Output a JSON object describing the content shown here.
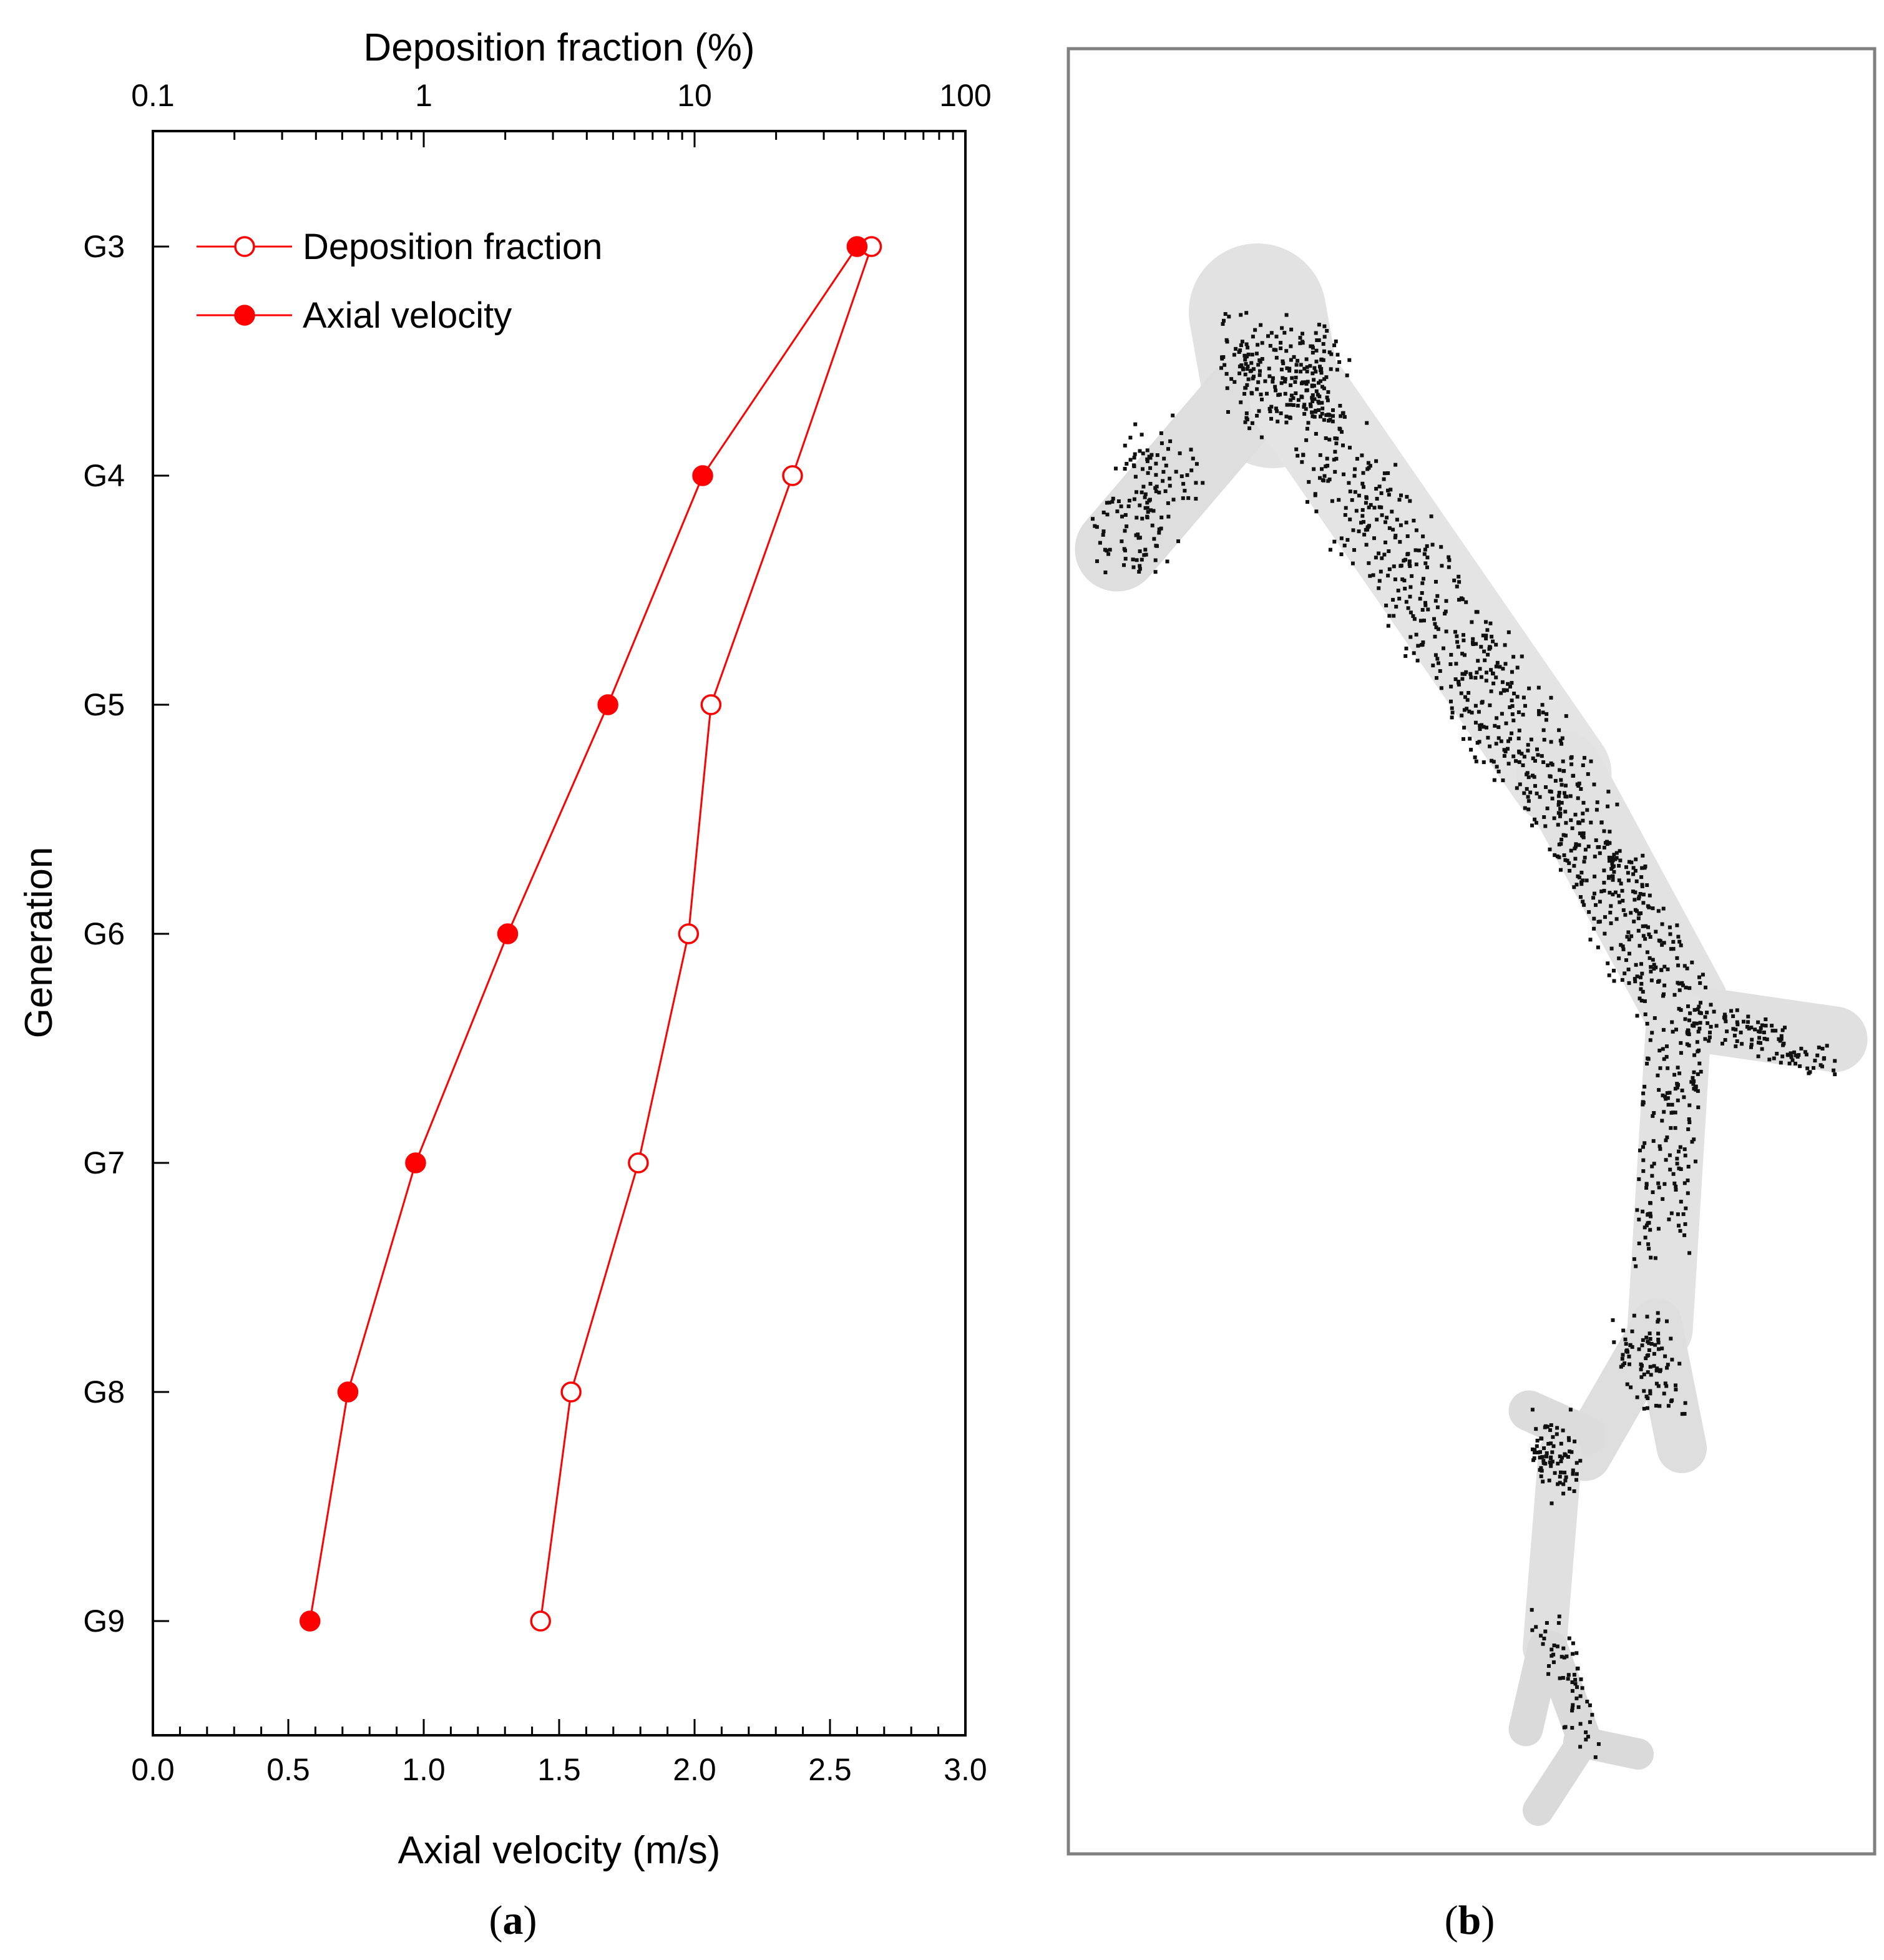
{
  "chart_data": {
    "type": "line",
    "categories": [
      "G3",
      "G4",
      "G5",
      "G6",
      "G7",
      "G8",
      "G9"
    ],
    "ylabel": "Generation",
    "xlabel_bottom": "Axial velocity (m/s)",
    "xlabel_top": "Deposition fraction (%)",
    "xlim_bottom": [
      0.0,
      3.0
    ],
    "xticks_bottom": [
      "0.0",
      "0.5",
      "1.0",
      "1.5",
      "2.0",
      "2.5",
      "3.0"
    ],
    "xscale_top": "log",
    "xlim_top": [
      0.1,
      100
    ],
    "xticks_top": [
      "0.1",
      "1",
      "10",
      "100"
    ],
    "grid": false,
    "legend_position": "top-left",
    "series": [
      {
        "name": "Deposition fraction",
        "axis": "top",
        "marker": "open-circle",
        "color": "#ff0000",
        "values": [
          45,
          23,
          11.5,
          9.5,
          6.2,
          3.5,
          2.7
        ]
      },
      {
        "name": "Axial velocity",
        "axis": "bottom",
        "marker": "filled-circle",
        "color": "#ff0000",
        "values": [
          2.6,
          2.03,
          1.68,
          1.31,
          0.97,
          0.72,
          0.58
        ]
      }
    ]
  },
  "panels": {
    "a_prefix": "(",
    "a_letter": "a",
    "a_suffix": ")",
    "b_prefix": "(",
    "b_letter": "b",
    "b_suffix": ")"
  },
  "colors": {
    "series": "#ff0000",
    "frame": "#808080",
    "airway": "#d8d8d8",
    "particles": "#000000"
  }
}
